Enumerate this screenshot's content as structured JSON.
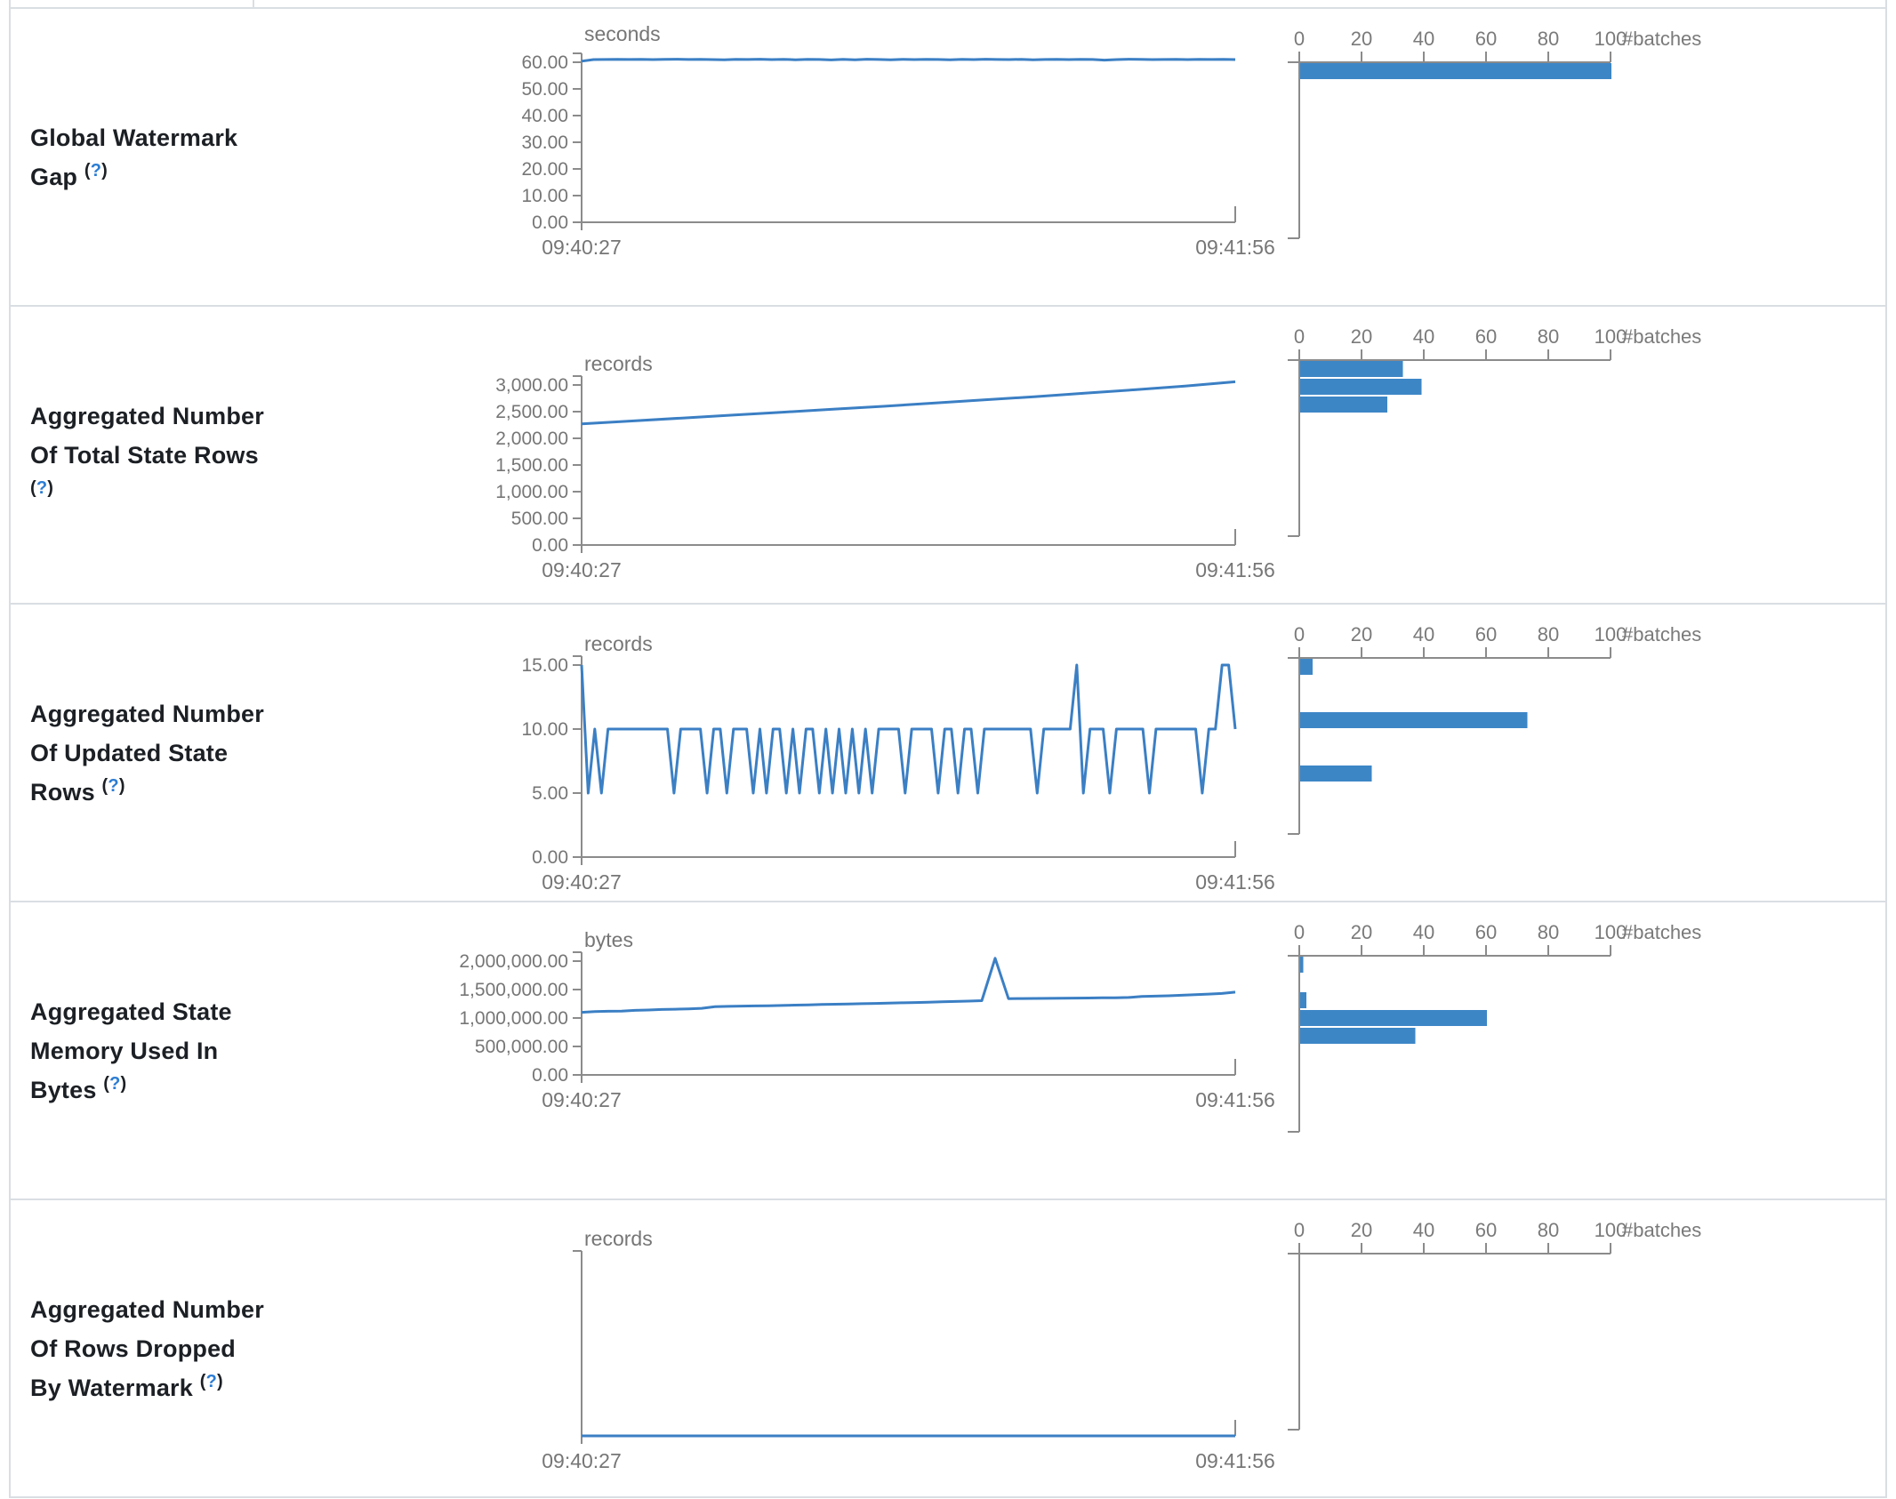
{
  "page": {
    "help_marker_parens": "()",
    "help_marker_symbol": "?"
  },
  "chart_data": [
    {
      "row_label": "Global Watermark Gap",
      "timeline": {
        "type": "line",
        "title": "Global Watermark Gap",
        "unit": "seconds",
        "x_start_label": "09:40:27",
        "x_end_label": "09:41:56",
        "y_tick_labels": [
          "60.00",
          "50.00",
          "40.00",
          "30.00",
          "20.00",
          "10.00",
          "0.00"
        ],
        "y_tick_values": [
          60,
          50,
          40,
          30,
          20,
          10,
          0
        ],
        "ylim": [
          0,
          63
        ],
        "values": [
          60.4,
          61.0,
          61.05,
          61.1,
          61.05,
          61.1,
          61.0,
          61.1,
          61.15,
          61.05,
          61.1,
          61.0,
          60.9,
          61.1,
          61.05,
          61.15,
          61.0,
          61.1,
          60.95,
          61.1,
          61.05,
          60.85,
          61.1,
          60.9,
          61.15,
          61.05,
          60.9,
          61.1,
          61.0,
          61.1,
          61.05,
          60.95,
          61.1,
          61.0,
          61.15,
          61.05,
          61.0,
          61.1,
          60.9,
          61.05,
          61.1,
          61.0,
          61.1,
          61.05,
          60.8,
          61.0,
          61.15,
          61.1,
          61.0,
          61.05,
          61.1,
          61.0,
          61.1,
          61.05,
          61.1,
          61.0
        ]
      },
      "histogram": {
        "type": "bar",
        "xlabel": "#batches",
        "x_tick_labels": [
          "0",
          "20",
          "40",
          "60",
          "80",
          "100"
        ],
        "x_tick_values": [
          0,
          20,
          40,
          60,
          80,
          100
        ],
        "xlim": [
          0,
          100
        ],
        "bins_total": 10,
        "bars": [
          {
            "bin": 0,
            "count": 100
          }
        ]
      }
    },
    {
      "row_label": "Aggregated Number Of Total State Rows",
      "timeline": {
        "type": "line",
        "title": "Aggregated Number Of Total State Rows",
        "unit": "records",
        "x_start_label": "09:40:27",
        "x_end_label": "09:41:56",
        "y_tick_labels": [
          "3,000.00",
          "2,500.00",
          "2,000.00",
          "1,500.00",
          "1,000.00",
          "500.00",
          "0.00"
        ],
        "y_tick_values": [
          3000,
          2500,
          2000,
          1500,
          1000,
          500,
          0
        ],
        "ylim": [
          0,
          3150
        ],
        "values": [
          2270,
          2325,
          2380,
          2435,
          2490,
          2545,
          2600,
          2660,
          2720,
          2780,
          2845,
          2910,
          2980,
          3060
        ]
      },
      "histogram": {
        "type": "bar",
        "xlabel": "#batches",
        "x_tick_labels": [
          "0",
          "20",
          "40",
          "60",
          "80",
          "100"
        ],
        "x_tick_values": [
          0,
          20,
          40,
          60,
          80,
          100
        ],
        "xlim": [
          0,
          100
        ],
        "bins_total": 10,
        "bars": [
          {
            "bin": 0,
            "count": 33
          },
          {
            "bin": 1,
            "count": 39
          },
          {
            "bin": 2,
            "count": 28
          }
        ]
      }
    },
    {
      "row_label": "Aggregated Number Of Updated State Rows",
      "timeline": {
        "type": "line",
        "title": "Aggregated Number Of Updated State Rows",
        "unit": "records",
        "x_start_label": "09:40:27",
        "x_end_label": "09:41:56",
        "y_tick_labels": [
          "15.00",
          "10.00",
          "5.00",
          "0.00"
        ],
        "y_tick_values": [
          15,
          10,
          5,
          0
        ],
        "ylim": [
          0,
          15.75
        ],
        "values": [
          15,
          5,
          10,
          5,
          10,
          10,
          10,
          10,
          10,
          10,
          10,
          10,
          10,
          10,
          5,
          10,
          10,
          10,
          10,
          5,
          10,
          10,
          5,
          10,
          10,
          10,
          5,
          10,
          5,
          10,
          10,
          5,
          10,
          5,
          10,
          10,
          5,
          10,
          5,
          10,
          5,
          10,
          5,
          10,
          5,
          10,
          10,
          10,
          10,
          5,
          10,
          10,
          10,
          10,
          5,
          10,
          10,
          5,
          10,
          10,
          5,
          10,
          10,
          10,
          10,
          10,
          10,
          10,
          10,
          5,
          10,
          10,
          10,
          10,
          10,
          15,
          5,
          10,
          10,
          10,
          5,
          10,
          10,
          10,
          10,
          10,
          5,
          10,
          10,
          10,
          10,
          10,
          10,
          10,
          5,
          10,
          10,
          15,
          15,
          10
        ]
      },
      "histogram": {
        "type": "bar",
        "xlabel": "#batches",
        "x_tick_labels": [
          "0",
          "20",
          "40",
          "60",
          "80",
          "100"
        ],
        "x_tick_values": [
          0,
          20,
          40,
          60,
          80,
          100
        ],
        "xlim": [
          0,
          100
        ],
        "bins_total": 10,
        "bars": [
          {
            "bin": 0,
            "count": 4
          },
          {
            "bin": 3,
            "count": 73
          },
          {
            "bin": 6,
            "count": 23
          }
        ]
      }
    },
    {
      "row_label": "Aggregated State Memory Used In Bytes",
      "timeline": {
        "type": "line",
        "title": "Aggregated State Memory Used In Bytes",
        "unit": "bytes",
        "x_start_label": "09:40:27",
        "x_end_label": "09:41:56",
        "y_tick_labels": [
          "2,000,000.00",
          "1,500,000.00",
          "1,000,000.00",
          "500,000.00",
          "0.00"
        ],
        "y_tick_values": [
          2000000,
          1500000,
          1000000,
          500000,
          0
        ],
        "ylim": [
          0,
          2100000
        ],
        "values": [
          1100000,
          1112000,
          1118000,
          1121000,
          1135000,
          1141000,
          1150000,
          1155000,
          1161000,
          1170000,
          1198000,
          1204000,
          1209000,
          1212000,
          1215000,
          1220000,
          1227000,
          1231000,
          1237000,
          1242000,
          1247000,
          1252000,
          1257000,
          1262000,
          1267000,
          1272000,
          1278000,
          1284000,
          1290000,
          1297000,
          1305000,
          2050000,
          1340000,
          1342000,
          1344000,
          1346000,
          1348000,
          1350000,
          1352000,
          1354000,
          1357000,
          1361000,
          1380000,
          1385000,
          1391000,
          1400000,
          1410000,
          1420000,
          1432000,
          1455000
        ]
      },
      "histogram": {
        "type": "bar",
        "xlabel": "#batches",
        "x_tick_labels": [
          "0",
          "20",
          "40",
          "60",
          "80",
          "100"
        ],
        "x_tick_values": [
          0,
          20,
          40,
          60,
          80,
          100
        ],
        "xlim": [
          0,
          100
        ],
        "bins_total": 10,
        "bars": [
          {
            "bin": 0,
            "count": 1
          },
          {
            "bin": 2,
            "count": 2
          },
          {
            "bin": 3,
            "count": 60
          },
          {
            "bin": 4,
            "count": 37
          }
        ]
      }
    },
    {
      "row_label": "Aggregated Number Of Rows Dropped By Watermark",
      "timeline": {
        "type": "line",
        "title": "Aggregated Number Of Rows Dropped By Watermark",
        "unit": "records",
        "x_start_label": "09:40:27",
        "x_end_label": "09:41:56",
        "y_tick_labels": [],
        "y_tick_values": [],
        "ylim": [
          0,
          1
        ],
        "values": [
          0,
          0
        ]
      },
      "histogram": {
        "type": "bar",
        "xlabel": "#batches",
        "x_tick_labels": [
          "0",
          "20",
          "40",
          "60",
          "80",
          "100"
        ],
        "x_tick_values": [
          0,
          20,
          40,
          60,
          80,
          100
        ],
        "xlim": [
          0,
          100
        ],
        "bins_total": 10,
        "bars": []
      }
    }
  ],
  "colors": {
    "line_blue": "#3b7fc4",
    "bar_blue": "#3d86c6",
    "axis_gray": "#8b8b8b",
    "text_gray": "#767676",
    "label_dark": "#1c2025",
    "help_blue": "#2b7cd3",
    "border": "#d9dee3"
  }
}
